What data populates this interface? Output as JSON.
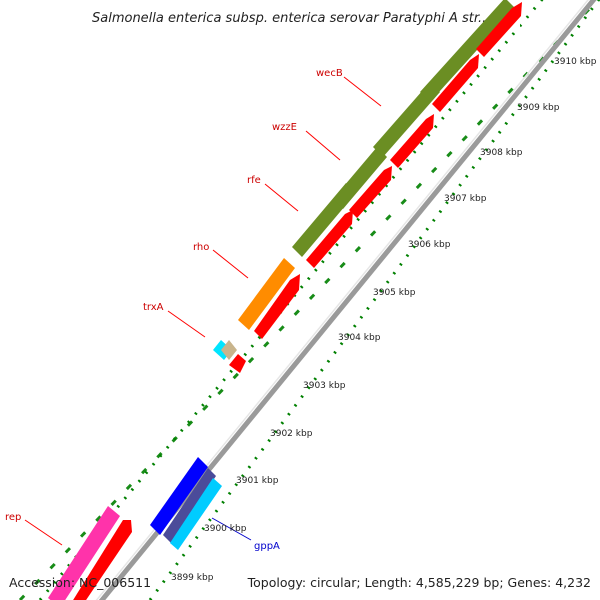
{
  "title": "Salmonella enterica subsp. enterica serovar Paratyphi A str....",
  "accession": "Accession: NC_006511",
  "summary": "Topology: circular; Length: 4,585,229 bp; Genes: 4,232",
  "ticks": [
    "3899 kbp",
    "3900 kbp",
    "3901 kbp",
    "3902 kbp",
    "3903 kbp",
    "3904 kbp",
    "3905 kbp",
    "3906 kbp",
    "3907 kbp",
    "3908 kbp",
    "3909 kbp",
    "3910 kbp"
  ],
  "genes": [
    {
      "name": "wecB",
      "color": "#cc0000"
    },
    {
      "name": "wzzE",
      "color": "#cc0000"
    },
    {
      "name": "rfe",
      "color": "#cc0000"
    },
    {
      "name": "rho",
      "color": "#cc0000"
    },
    {
      "name": "trxA",
      "color": "#cc0000"
    },
    {
      "name": "rep",
      "color": "#cc0000"
    },
    {
      "name": "gppA",
      "color": "#0000cc"
    }
  ],
  "colors": {
    "green": "#6b8e23",
    "red": "#ff0000",
    "orange": "#ff8c00",
    "blue": "#0000ff",
    "navy": "#4b4b9a",
    "cyan": "#00ccff",
    "magenta": "#ff33aa",
    "tan": "#c8b48c",
    "backbone": "#999999",
    "dots": "#008000"
  }
}
